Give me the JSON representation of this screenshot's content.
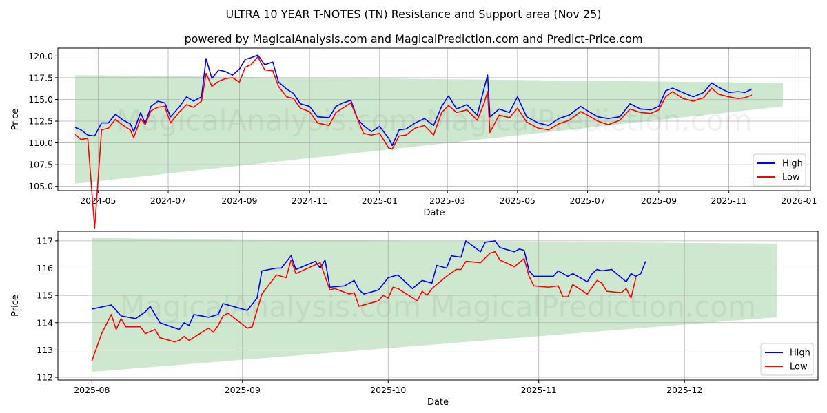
{
  "title": "ULTRA 10 YEAR T-NOTES (TN) Resistance and Support area (Nov 25)",
  "subtitle": "powered by MagicalAnalysis.com and MagicalPrediction.com and Predict-Price.com",
  "watermarks": [
    "MagicalAnalysis.com",
    "MagicalPrediction.com"
  ],
  "colors": {
    "high": "#0000ff",
    "low": "#ff0000",
    "band": "#a5d6a7"
  },
  "chart_data": [
    {
      "type": "line",
      "x_unit": "days since 2024-05-01",
      "xlabel": "Date",
      "ylabel": "Price",
      "xlim": [
        -35,
        620
      ],
      "ylim": [
        104.5,
        120.9
      ],
      "grid": true,
      "legend": "bottom-right",
      "xticks": [
        {
          "v": 0,
          "label": "2024-05"
        },
        {
          "v": 61,
          "label": "2024-07"
        },
        {
          "v": 123,
          "label": "2024-09"
        },
        {
          "v": 184,
          "label": "2024-11"
        },
        {
          "v": 245,
          "label": "2025-01"
        },
        {
          "v": 304,
          "label": "2025-03"
        },
        {
          "v": 365,
          "label": "2025-05"
        },
        {
          "v": 426,
          "label": "2025-07"
        },
        {
          "v": 488,
          "label": "2025-09"
        },
        {
          "v": 549,
          "label": "2025-11"
        },
        {
          "v": 610,
          "label": "2026-01"
        }
      ],
      "yticks": [
        {
          "v": 105,
          "label": "105.0"
        },
        {
          "v": 107.5,
          "label": "107.5"
        },
        {
          "v": 110,
          "label": "110.0"
        },
        {
          "v": 112.5,
          "label": "112.5"
        },
        {
          "v": 115,
          "label": "115.0"
        },
        {
          "v": 117.5,
          "label": "117.5"
        },
        {
          "v": 120,
          "label": "120.0"
        }
      ],
      "band": {
        "x": [
          -20,
          596
        ],
        "top": [
          117.8,
          116.9
        ],
        "bottom": [
          105.3,
          114.2
        ]
      },
      "series": [
        {
          "name": "High",
          "x": [
            -20,
            -15,
            -9,
            -3,
            3,
            9,
            15,
            22,
            28,
            31,
            37,
            41,
            46,
            52,
            58,
            63,
            71,
            77,
            83,
            90,
            94,
            99,
            105,
            111,
            117,
            123,
            128,
            133,
            139,
            145,
            152,
            157,
            164,
            170,
            176,
            184,
            191,
            201,
            207,
            213,
            220,
            226,
            231,
            238,
            245,
            253,
            256,
            262,
            268,
            276,
            284,
            292,
            299,
            305,
            312,
            321,
            330,
            336,
            339,
            341,
            349,
            358,
            365,
            373,
            383,
            392,
            401,
            410,
            420,
            426,
            435,
            444,
            454,
            463,
            472,
            481,
            488,
            494,
            500,
            509,
            518,
            527,
            534,
            540,
            549,
            557,
            563,
            569
          ],
          "y": [
            111.8,
            111.5,
            110.9,
            110.8,
            112.3,
            112.3,
            113.3,
            112.6,
            112.2,
            111.3,
            113.5,
            112.2,
            114.2,
            114.8,
            114.6,
            113.0,
            114.2,
            115.3,
            114.8,
            115.3,
            119.7,
            117.4,
            118.4,
            118.2,
            117.8,
            118.5,
            119.6,
            119.8,
            120.1,
            119.0,
            119.3,
            117.0,
            116.2,
            115.7,
            114.5,
            114.2,
            113.0,
            112.9,
            114.2,
            114.6,
            114.9,
            112.7,
            112.0,
            111.3,
            111.9,
            110.5,
            109.7,
            111.5,
            111.6,
            112.3,
            112.8,
            112.0,
            114.2,
            115.4,
            113.9,
            114.4,
            113.2,
            116.3,
            117.8,
            113.0,
            113.9,
            113.5,
            115.3,
            113.0,
            112.3,
            112.0,
            112.8,
            113.2,
            114.2,
            113.7,
            113.0,
            112.8,
            113.0,
            114.5,
            113.9,
            113.8,
            114.2,
            116.0,
            116.3,
            115.8,
            115.3,
            115.8,
            116.9,
            116.4,
            115.8,
            115.9,
            115.8,
            116.2
          ]
        },
        {
          "name": "Low",
          "x": [
            -20,
            -15,
            -9,
            -3,
            3,
            9,
            15,
            22,
            28,
            31,
            37,
            41,
            46,
            52,
            58,
            63,
            71,
            77,
            83,
            90,
            94,
            99,
            105,
            111,
            117,
            123,
            128,
            133,
            139,
            145,
            152,
            157,
            164,
            170,
            176,
            184,
            191,
            201,
            207,
            213,
            220,
            226,
            231,
            238,
            245,
            253,
            256,
            262,
            268,
            276,
            284,
            292,
            299,
            305,
            312,
            321,
            330,
            336,
            339,
            341,
            349,
            358,
            365,
            373,
            383,
            392,
            401,
            410,
            420,
            426,
            435,
            444,
            454,
            463,
            472,
            481,
            488,
            494,
            500,
            509,
            518,
            527,
            534,
            540,
            549,
            557,
            563,
            569
          ],
          "y": [
            111.0,
            110.4,
            110.5,
            100.2,
            111.5,
            111.7,
            112.7,
            112.0,
            111.5,
            110.6,
            112.8,
            112.1,
            113.7,
            114.1,
            114.2,
            112.3,
            113.6,
            114.4,
            114.1,
            114.8,
            118.0,
            116.5,
            117.1,
            117.4,
            117.5,
            117.0,
            118.7,
            119.0,
            119.9,
            118.4,
            118.3,
            116.5,
            115.3,
            115.1,
            114.0,
            113.6,
            112.3,
            112.0,
            113.5,
            114.0,
            114.6,
            112.7,
            111.1,
            110.9,
            111.1,
            109.4,
            109.3,
            110.8,
            110.9,
            111.7,
            112.0,
            110.9,
            113.5,
            114.3,
            113.5,
            113.8,
            112.6,
            114.6,
            115.9,
            111.2,
            113.2,
            112.9,
            114.0,
            112.4,
            111.7,
            111.5,
            112.2,
            112.6,
            113.6,
            113.2,
            112.5,
            112.1,
            112.6,
            113.9,
            113.5,
            113.4,
            113.8,
            115.3,
            115.9,
            115.1,
            114.8,
            115.2,
            116.3,
            115.6,
            115.3,
            115.1,
            115.2,
            115.5
          ]
        }
      ]
    },
    {
      "type": "line",
      "x_unit": "days since 2025-08-01",
      "xlabel": "Date",
      "ylabel": "Price",
      "xlim": [
        -7,
        149.5
      ],
      "ylim": [
        111.9,
        117.35
      ],
      "grid": true,
      "legend": "bottom-right",
      "xticks": [
        {
          "v": 0,
          "label": "2025-08"
        },
        {
          "v": 31,
          "label": "2025-09"
        },
        {
          "v": 61,
          "label": "2025-10"
        },
        {
          "v": 92,
          "label": "2025-11"
        },
        {
          "v": 122,
          "label": "2025-12"
        }
      ],
      "yticks": [
        {
          "v": 112,
          "label": "112"
        },
        {
          "v": 113,
          "label": "113"
        },
        {
          "v": 114,
          "label": "114"
        },
        {
          "v": 115,
          "label": "115"
        },
        {
          "v": 116,
          "label": "116"
        },
        {
          "v": 117,
          "label": "117"
        }
      ],
      "band": {
        "x": [
          0,
          141
        ],
        "top": [
          117.1,
          116.9
        ],
        "bottom": [
          112.2,
          114.2
        ]
      },
      "series": [
        {
          "name": "High",
          "x": [
            0,
            4,
            5,
            6,
            9,
            11,
            12,
            14,
            18,
            19,
            20,
            21,
            24,
            26,
            27,
            32,
            34,
            35,
            38,
            39,
            41,
            42,
            46,
            47,
            48,
            49,
            52,
            54,
            55,
            56,
            59,
            61,
            63,
            66,
            68,
            70,
            71,
            73,
            74,
            76,
            77,
            80,
            81,
            83,
            84,
            87,
            88,
            89,
            90,
            91,
            95,
            96,
            98,
            99,
            102,
            103,
            104,
            105,
            107,
            110,
            111,
            112,
            113,
            114
          ],
          "y": [
            114.5,
            114.65,
            114.45,
            114.25,
            114.15,
            114.4,
            114.6,
            114.0,
            113.75,
            114.0,
            113.9,
            114.3,
            114.2,
            114.3,
            114.7,
            114.45,
            114.9,
            115.9,
            116.0,
            116.0,
            116.45,
            115.95,
            116.25,
            116.0,
            116.3,
            115.3,
            115.35,
            115.55,
            115.2,
            115.05,
            115.2,
            115.65,
            115.75,
            115.25,
            115.55,
            115.45,
            116.1,
            116.0,
            116.45,
            116.4,
            117.0,
            116.6,
            116.95,
            117.0,
            116.75,
            116.6,
            116.7,
            116.65,
            115.9,
            115.7,
            115.7,
            115.9,
            115.7,
            115.8,
            115.5,
            115.8,
            115.95,
            115.9,
            115.95,
            115.5,
            115.8,
            115.7,
            115.8,
            116.25
          ]
        },
        {
          "name": "Low",
          "x": [
            0,
            2,
            4,
            5,
            6,
            7,
            10,
            11,
            13,
            14,
            17,
            18,
            19,
            20,
            24,
            25,
            26,
            27,
            28,
            32,
            33,
            35,
            38,
            40,
            41,
            42,
            47,
            49,
            50,
            53,
            54,
            55,
            59,
            60,
            61,
            62,
            63,
            67,
            68,
            69,
            70,
            73,
            75,
            76,
            77,
            80,
            82,
            83,
            84,
            87,
            89,
            90,
            91,
            94,
            96,
            97,
            98,
            99,
            102,
            104,
            105,
            106,
            109,
            110,
            111,
            112
          ],
          "y": [
            112.6,
            113.6,
            114.3,
            113.75,
            114.15,
            113.85,
            113.85,
            113.6,
            113.75,
            113.45,
            113.3,
            113.35,
            113.5,
            113.35,
            113.8,
            113.65,
            113.9,
            114.25,
            114.35,
            113.8,
            113.85,
            115.05,
            115.75,
            115.65,
            116.3,
            115.8,
            116.2,
            115.2,
            115.25,
            115.05,
            115.1,
            114.6,
            114.8,
            115.0,
            114.9,
            115.3,
            115.25,
            114.8,
            115.15,
            115.0,
            115.25,
            115.7,
            115.95,
            115.95,
            116.25,
            116.2,
            116.55,
            116.6,
            116.3,
            116.05,
            116.35,
            115.7,
            115.35,
            115.3,
            115.35,
            114.95,
            114.95,
            115.4,
            115.05,
            115.55,
            115.45,
            115.15,
            115.1,
            115.25,
            114.9,
            115.65
          ]
        }
      ]
    }
  ]
}
